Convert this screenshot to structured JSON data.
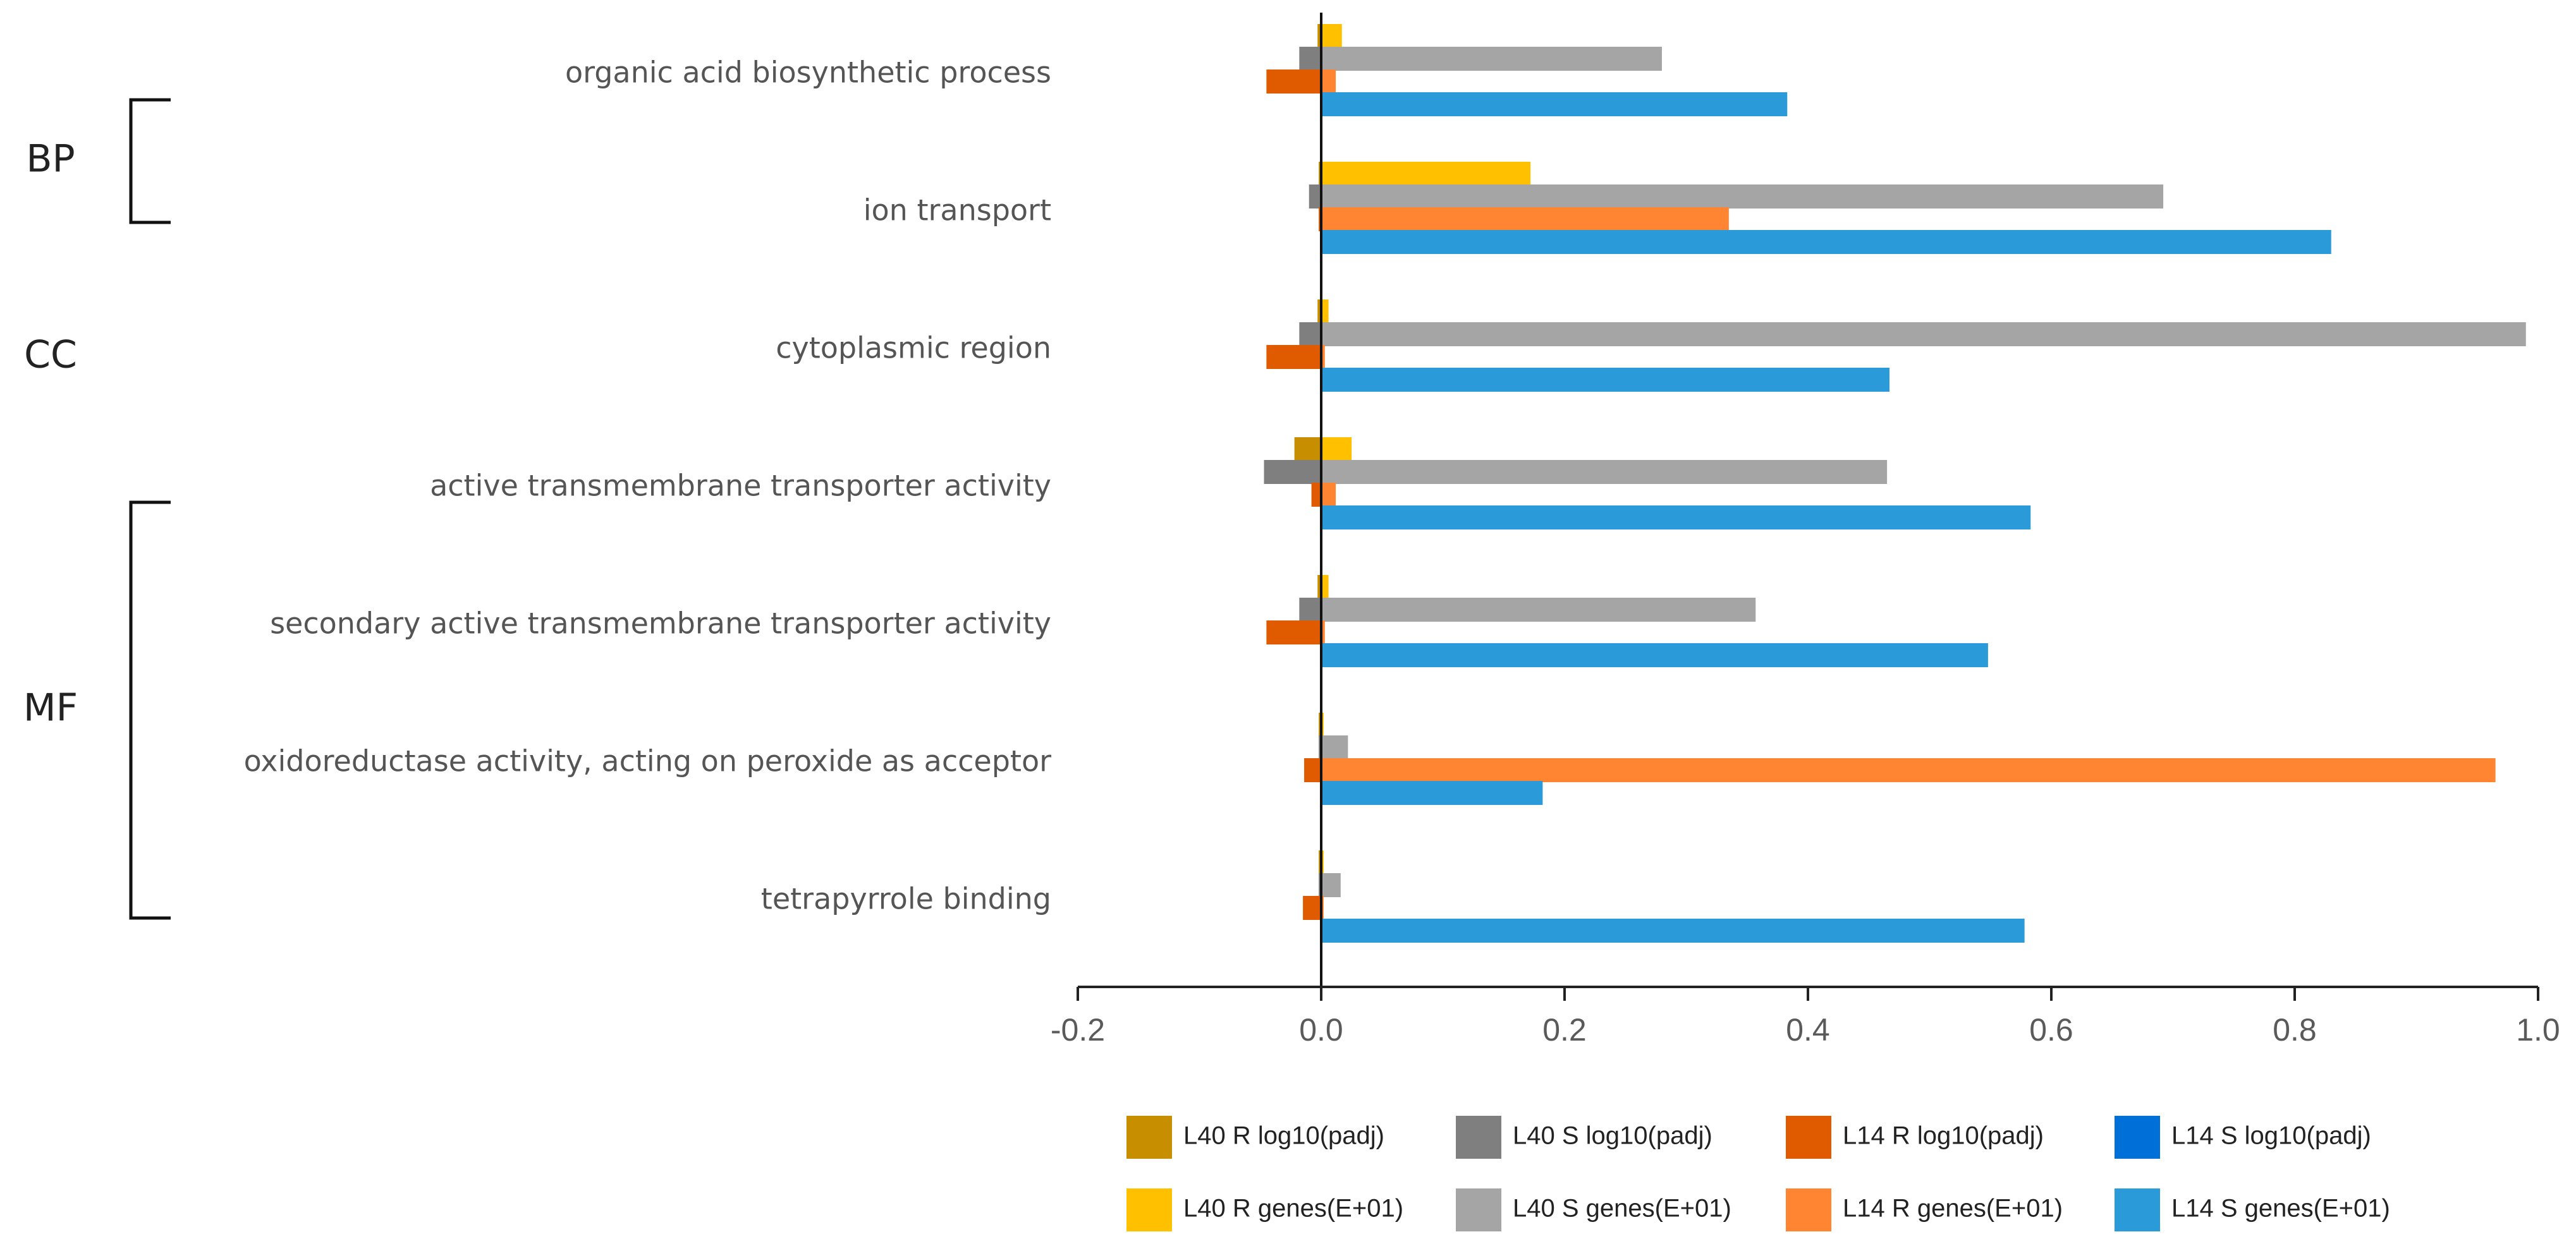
{
  "chart_data": {
    "type": "bar",
    "orientation": "horizontal",
    "title": "",
    "xlabel": "",
    "ylabel": "",
    "xlim": [
      -0.2,
      1.0
    ],
    "xticks": [
      "-0.2",
      "0.0",
      "0.2",
      "0.4",
      "0.6",
      "0.8",
      "1.0"
    ],
    "xtick_values": [
      -0.2,
      0.0,
      0.2,
      0.4,
      0.6,
      0.8,
      1.0
    ],
    "grid": false,
    "legend_position": "bottom",
    "categories": [
      "organic acid biosynthetic process",
      "ion transport",
      "cytoplasmic region",
      "active transmembrane transporter activity",
      "secondary active transmembrane transporter activity",
      "oxidoreductase activity, acting on peroxide as acceptor",
      "tetrapyrrole binding"
    ],
    "groups": [
      {
        "label": "BP",
        "first": 0,
        "last": 1,
        "bracket": true
      },
      {
        "label": "CC",
        "first": 2,
        "last": 2,
        "bracket": false
      },
      {
        "label": "MF",
        "first": 3,
        "last": 6,
        "bracket": true
      }
    ],
    "series": [
      {
        "name": "L40 R log10(padj)",
        "color": "#C78F00",
        "values": [
          -0.003,
          -0.002,
          -0.003,
          -0.022,
          -0.003,
          -0.002,
          -0.002
        ]
      },
      {
        "name": "L40 R genes(E+01)",
        "color": "#FFC000",
        "values": [
          0.017,
          0.172,
          0.006,
          0.025,
          0.006,
          0.002,
          0.002
        ]
      },
      {
        "name": "L40 S log10(padj)",
        "color": "#7F7F7F",
        "values": [
          -0.018,
          -0.01,
          -0.018,
          -0.047,
          -0.018,
          -0.002,
          -0.002
        ]
      },
      {
        "name": "L40 S genes(E+01)",
        "color": "#A5A5A5",
        "values": [
          0.28,
          0.692,
          0.99,
          0.465,
          0.357,
          0.022,
          0.016
        ]
      },
      {
        "name": "L14 R log10(padj)",
        "color": "#E05A00",
        "values": [
          -0.045,
          -0.002,
          -0.045,
          -0.008,
          -0.045,
          -0.014,
          -0.015
        ]
      },
      {
        "name": "L14 R genes(E+01)",
        "color": "#FF8533",
        "values": [
          0.012,
          0.335,
          0.003,
          0.012,
          0.003,
          0.965,
          0.002
        ]
      },
      {
        "name": "L14 S log10(padj)",
        "color": "#0070D8",
        "values": [
          0.0,
          0.0,
          0.0,
          0.0,
          0.0,
          0.0,
          0.0
        ]
      },
      {
        "name": "L14 S genes(E+01)",
        "color": "#2A9BD8",
        "values": [
          0.383,
          0.83,
          0.467,
          0.583,
          0.548,
          0.182,
          0.578
        ]
      }
    ],
    "legend_order": [
      "L40 R log10(padj)",
      "L40 S log10(padj)",
      "L14 R log10(padj)",
      "L14 S log10(padj)",
      "L40 R genes(E+01)",
      "L40 S genes(E+01)",
      "L14 R genes(E+01)",
      "L14 S genes(E+01)"
    ]
  }
}
